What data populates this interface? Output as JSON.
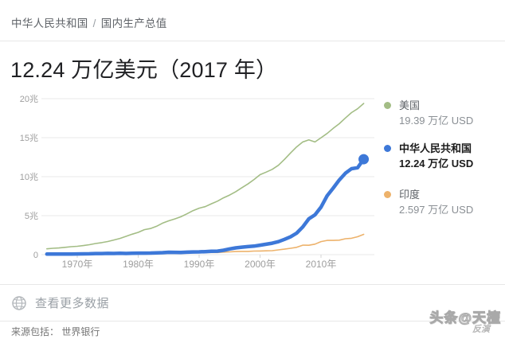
{
  "breadcrumb": {
    "entity": "中华人民共和国",
    "separator": "/",
    "metric": "国内生产总值"
  },
  "title": "12.24 万亿美元（2017 年）",
  "chart_data": {
    "type": "line",
    "x_range": [
      1965,
      2017
    ],
    "x_unit": "year",
    "series": [
      {
        "name": "美国",
        "value_label": "19.39 万亿 USD",
        "color": "#a3bd85",
        "highlight": false,
        "values": [
          0.744,
          0.815,
          0.862,
          0.943,
          1.02,
          1.073,
          1.165,
          1.279,
          1.425,
          1.545,
          1.685,
          1.873,
          2.082,
          2.352,
          2.627,
          2.857,
          3.207,
          3.344,
          3.634,
          4.038,
          4.339,
          4.58,
          4.855,
          5.236,
          5.642,
          5.963,
          6.158,
          6.52,
          6.859,
          7.287,
          7.64,
          8.073,
          8.578,
          9.063,
          9.631,
          10.252,
          10.582,
          10.936,
          11.458,
          12.214,
          13.037,
          13.815,
          14.452,
          14.713,
          14.449,
          14.992,
          15.543,
          16.197,
          16.785,
          17.522,
          18.219,
          18.707,
          19.391
        ]
      },
      {
        "name": "中华人民共和国",
        "value_label": "12.24 万亿 USD",
        "color": "#3d78d8",
        "highlight": true,
        "values": [
          0.07,
          0.076,
          0.072,
          0.07,
          0.079,
          0.093,
          0.099,
          0.113,
          0.138,
          0.144,
          0.163,
          0.154,
          0.175,
          0.15,
          0.178,
          0.191,
          0.196,
          0.205,
          0.231,
          0.26,
          0.31,
          0.301,
          0.273,
          0.312,
          0.348,
          0.361,
          0.383,
          0.427,
          0.445,
          0.564,
          0.734,
          0.864,
          0.962,
          1.029,
          1.094,
          1.211,
          1.339,
          1.471,
          1.66,
          1.955,
          2.286,
          2.752,
          3.55,
          4.594,
          5.102,
          6.087,
          7.552,
          8.532,
          9.57,
          10.439,
          11.016,
          11.138,
          12.238
        ]
      },
      {
        "name": "印度",
        "value_label": "2.597 万亿 USD",
        "color": "#edb26b",
        "highlight": false,
        "values": [
          0.059,
          0.046,
          0.05,
          0.053,
          0.058,
          0.062,
          0.067,
          0.071,
          0.085,
          0.099,
          0.098,
          0.102,
          0.121,
          0.137,
          0.152,
          0.186,
          0.193,
          0.201,
          0.218,
          0.212,
          0.233,
          0.248,
          0.28,
          0.297,
          0.296,
          0.321,
          0.27,
          0.288,
          0.279,
          0.327,
          0.36,
          0.393,
          0.416,
          0.421,
          0.459,
          0.468,
          0.485,
          0.515,
          0.608,
          0.709,
          0.82,
          0.94,
          1.217,
          1.199,
          1.342,
          1.676,
          1.823,
          1.828,
          1.857,
          2.039,
          2.104,
          2.295,
          2.597
        ]
      }
    ],
    "ylim": [
      0,
      20
    ],
    "y_tick_labels": [
      "20兆",
      "15兆",
      "10兆",
      "5兆",
      "0"
    ],
    "y_tick_values": [
      20,
      15,
      10,
      5,
      0
    ],
    "x_tick_labels": [
      "1970年",
      "1980年",
      "1990年",
      "2000年",
      "2010年"
    ],
    "x_tick_years": [
      1970,
      1980,
      1990,
      2000,
      2010
    ],
    "grid": true,
    "legend_position": "right",
    "grid_color": "#e8e8e8",
    "axis_label_color": "#9e9e9e"
  },
  "footer": {
    "more_data_label": "查看更多数据",
    "source_label": "来源包括：",
    "source": "世界银行"
  },
  "watermark": {
    "line1": "头条@天檀",
    "line2": "反演"
  },
  "colors": {
    "us_green": "#a3bd85",
    "china_blue": "#3d78d8",
    "india_orange": "#edb26b"
  }
}
